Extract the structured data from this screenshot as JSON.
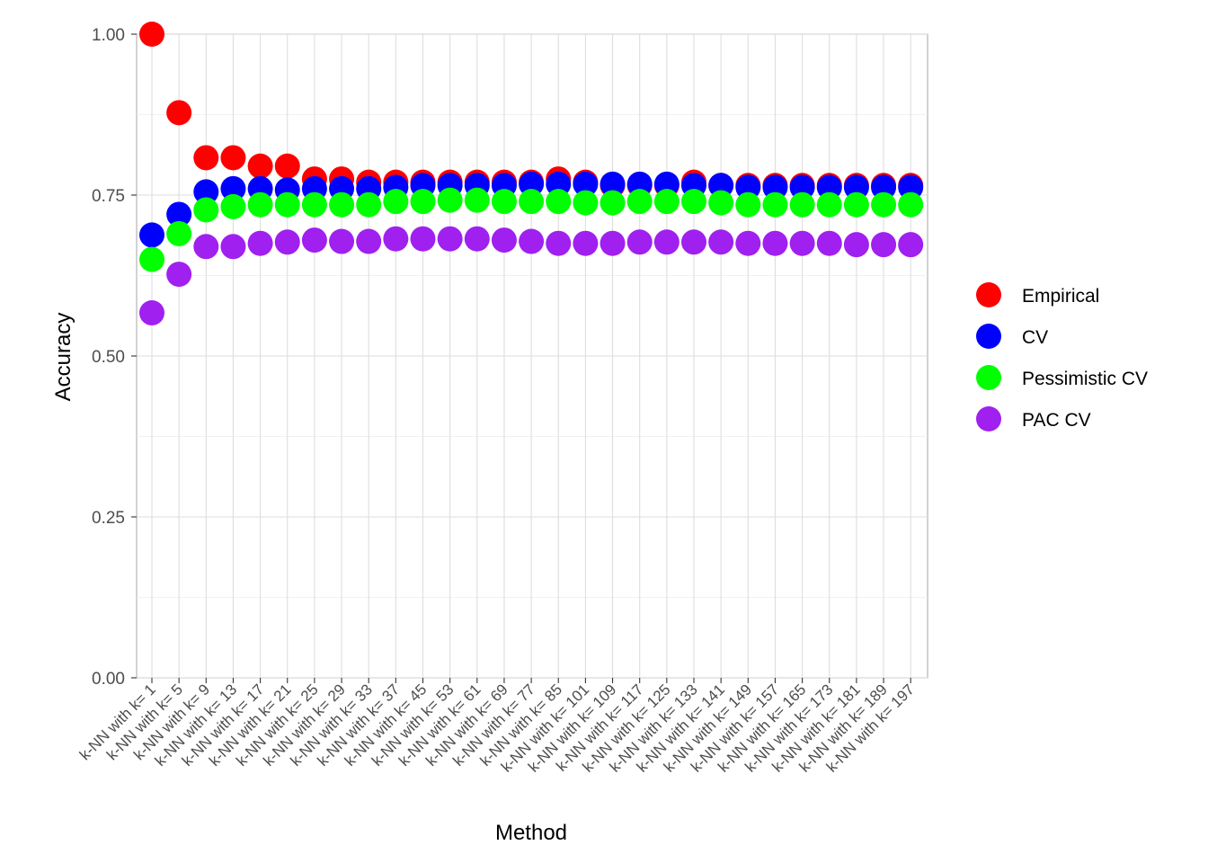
{
  "chart_data": {
    "type": "scatter",
    "xlabel": "Method",
    "ylabel": "Accuracy",
    "ylim": [
      0,
      1
    ],
    "yticks": [
      "0.00",
      "0.25",
      "0.50",
      "0.75",
      "1.00"
    ],
    "grid": true,
    "legend_position": "right",
    "categories": [
      "k-NN with k= 1",
      "k-NN with k= 5",
      "k-NN with k= 9",
      "k-NN with k= 13",
      "k-NN with k= 17",
      "k-NN with k= 21",
      "k-NN with k= 25",
      "k-NN with k= 29",
      "k-NN with k= 33",
      "k-NN with k= 37",
      "k-NN with k= 45",
      "k-NN with k= 53",
      "k-NN with k= 61",
      "k-NN with k= 69",
      "k-NN with k= 77",
      "k-NN with k= 85",
      "k-NN with k= 101",
      "k-NN with k= 109",
      "k-NN with k= 117",
      "k-NN with k= 125",
      "k-NN with k= 133",
      "k-NN with k= 141",
      "k-NN with k= 149",
      "k-NN with k= 157",
      "k-NN with k= 165",
      "k-NN with k= 173",
      "k-NN with k= 181",
      "k-NN with k= 189",
      "k-NN with k= 197"
    ],
    "series": [
      {
        "name": "Empirical",
        "color": "#ff0000",
        "values": [
          1.0,
          0.878,
          0.808,
          0.808,
          0.795,
          0.795,
          0.775,
          0.775,
          0.77,
          0.77,
          0.77,
          0.77,
          0.77,
          0.77,
          0.77,
          0.775,
          0.77,
          0.765,
          0.765,
          0.765,
          0.77,
          0.765,
          0.765,
          0.765,
          0.765,
          0.765,
          0.765,
          0.765,
          0.765
        ]
      },
      {
        "name": "CV",
        "color": "#0000ff",
        "values": [
          0.688,
          0.72,
          0.755,
          0.76,
          0.76,
          0.758,
          0.76,
          0.76,
          0.76,
          0.762,
          0.765,
          0.765,
          0.765,
          0.765,
          0.767,
          0.767,
          0.767,
          0.767,
          0.767,
          0.767,
          0.765,
          0.765,
          0.762,
          0.762,
          0.762,
          0.762,
          0.762,
          0.762,
          0.762
        ]
      },
      {
        "name": "Pessimistic CV",
        "color": "#00ff00",
        "values": [
          0.65,
          0.69,
          0.727,
          0.732,
          0.735,
          0.735,
          0.735,
          0.735,
          0.735,
          0.74,
          0.74,
          0.742,
          0.742,
          0.74,
          0.74,
          0.74,
          0.738,
          0.738,
          0.74,
          0.74,
          0.74,
          0.738,
          0.735,
          0.735,
          0.735,
          0.735,
          0.735,
          0.735,
          0.735
        ]
      },
      {
        "name": "PAC CV",
        "color": "#a020f0",
        "values": [
          0.567,
          0.627,
          0.67,
          0.67,
          0.675,
          0.677,
          0.68,
          0.678,
          0.678,
          0.682,
          0.682,
          0.682,
          0.682,
          0.68,
          0.678,
          0.675,
          0.675,
          0.675,
          0.677,
          0.677,
          0.677,
          0.677,
          0.675,
          0.675,
          0.675,
          0.675,
          0.673,
          0.673,
          0.673
        ]
      }
    ]
  }
}
